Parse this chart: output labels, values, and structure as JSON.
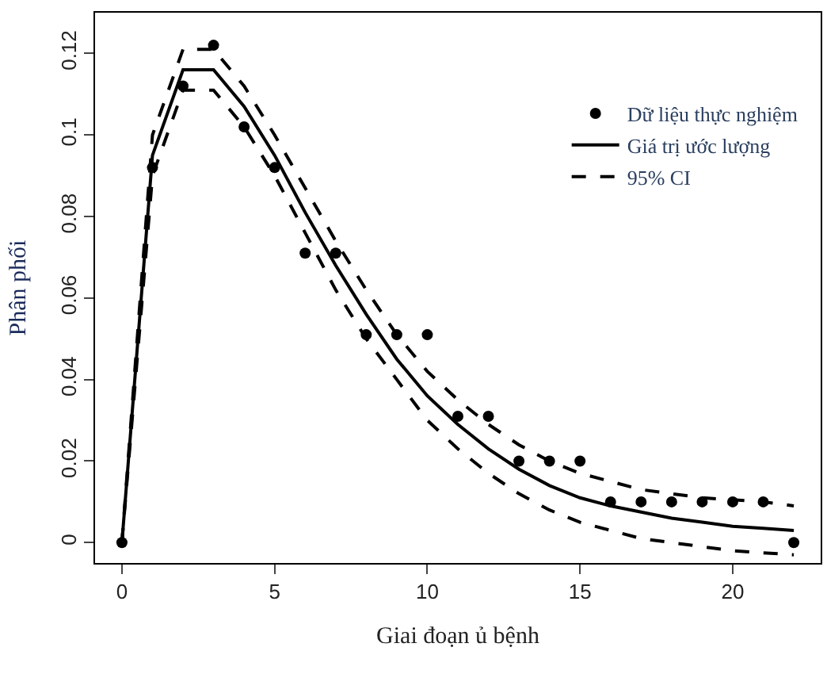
{
  "chart_data": {
    "type": "line",
    "xlabel": "Giai đoạn ủ bệnh",
    "ylabel": "Phân phối",
    "x": [
      0,
      1,
      2,
      3,
      4,
      5,
      6,
      7,
      8,
      9,
      10,
      11,
      12,
      13,
      14,
      15,
      16,
      17,
      18,
      19,
      20,
      21,
      22
    ],
    "series": [
      {
        "name": "Dữ liệu thực nghiệm",
        "type": "scatter",
        "marker": "circle",
        "color": "#000000",
        "values": [
          0,
          0.092,
          0.112,
          0.122,
          0.102,
          0.092,
          0.071,
          0.071,
          0.051,
          0.051,
          0.051,
          0.031,
          0.031,
          0.02,
          0.02,
          0.02,
          0.01,
          0.01,
          0.01,
          0.01,
          0.01,
          0.01,
          0
        ]
      },
      {
        "name": "Giá trị ước lượng",
        "line_style": "solid",
        "color": "#000000",
        "values": [
          0,
          0.095,
          0.116,
          0.116,
          0.107,
          0.095,
          0.081,
          0.068,
          0.056,
          0.045,
          0.036,
          0.029,
          0.023,
          0.018,
          0.014,
          0.011,
          0.009,
          0.0075,
          0.006,
          0.005,
          0.004,
          0.0035,
          0.003
        ]
      },
      {
        "name": "95% CI",
        "line_style": "dashed",
        "color": "#000000",
        "values": [
          0,
          0.1,
          0.121,
          0.121,
          0.112,
          0.1,
          0.087,
          0.074,
          0.062,
          0.051,
          0.042,
          0.035,
          0.029,
          0.024,
          0.02,
          0.017,
          0.015,
          0.013,
          0.012,
          0.011,
          0.0105,
          0.01,
          0.009
        ]
      },
      {
        "line_style": "dashed",
        "color": "#000000",
        "values": [
          0,
          0.09,
          0.111,
          0.111,
          0.102,
          0.09,
          0.076,
          0.062,
          0.05,
          0.04,
          0.03,
          0.023,
          0.017,
          0.012,
          0.008,
          0.005,
          0.003,
          0.001,
          0,
          -0.001,
          -0.002,
          -0.0025,
          -0.003
        ]
      }
    ],
    "xlim": [
      -0.88,
      22.88
    ],
    "ylim": [
      -0.005,
      0.13
    ],
    "xticks": [
      0,
      5,
      10,
      15,
      20
    ],
    "yticks": [
      0,
      0.02,
      0.04,
      0.06,
      0.08,
      0.1,
      0.12
    ],
    "legend": "top right"
  }
}
